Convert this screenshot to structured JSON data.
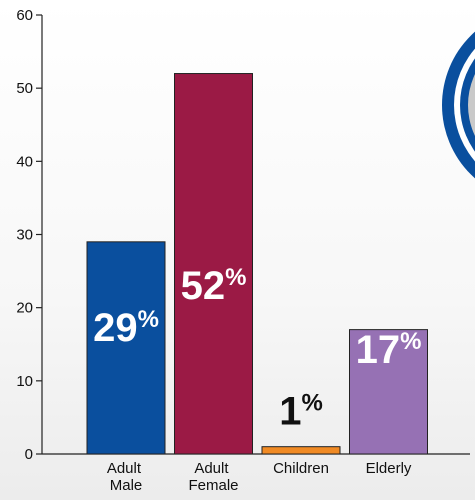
{
  "chart_data": {
    "type": "bar",
    "categories": [
      "Adult Male",
      "Adult Female",
      "Children",
      "Elderly"
    ],
    "values": [
      29,
      52,
      1,
      17
    ],
    "value_labels": [
      "29%",
      "52%",
      "1%",
      "17%"
    ],
    "colors": [
      "#0a4f9e",
      "#9b1a45",
      "#f08a24",
      "#9671b4"
    ],
    "ylim": [
      0,
      60
    ],
    "yticks": [
      0,
      10,
      20,
      30,
      40,
      50,
      60
    ],
    "grid": false
  }
}
